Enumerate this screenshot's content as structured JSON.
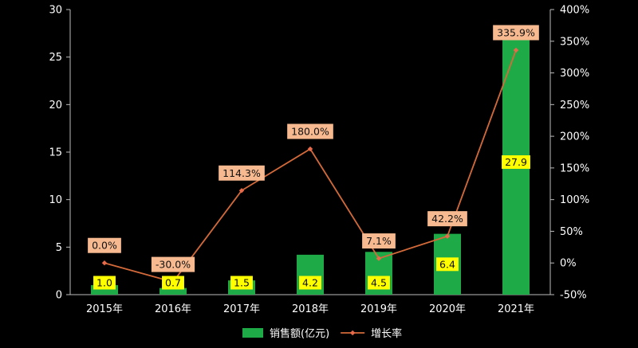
{
  "chart_data": {
    "type": "bar+line",
    "categories": [
      "2015年",
      "2016年",
      "2017年",
      "2018年",
      "2019年",
      "2020年",
      "2021年"
    ],
    "series": [
      {
        "name": "销售额(亿元)",
        "type": "bar",
        "axis": "left",
        "values": [
          1.0,
          0.7,
          1.5,
          4.2,
          4.5,
          6.4,
          27.9
        ],
        "labels": [
          "1.0",
          "0.7",
          "1.5",
          "4.2",
          "4.5",
          "6.4",
          "27.9"
        ]
      },
      {
        "name": "增长率",
        "type": "line",
        "axis": "right",
        "values": [
          0.0,
          -30.0,
          114.3,
          180.0,
          7.1,
          42.2,
          335.9
        ],
        "labels": [
          "0.0%",
          "-30.0%",
          "114.3%",
          "180.0%",
          "7.1%",
          "42.2%",
          "335.9%"
        ]
      }
    ],
    "y_left": {
      "range": [
        0,
        30
      ],
      "ticks": [
        "0",
        "5",
        "10",
        "15",
        "20",
        "25",
        "30"
      ],
      "tick_values": [
        0,
        5,
        10,
        15,
        20,
        25,
        30
      ]
    },
    "y_right": {
      "range": [
        -50,
        400
      ],
      "ticks": [
        "-50%",
        "0%",
        "50%",
        "100%",
        "150%",
        "200%",
        "250%",
        "300%",
        "350%",
        "400%"
      ],
      "tick_values": [
        -50,
        0,
        50,
        100,
        150,
        200,
        250,
        300,
        350,
        400
      ]
    },
    "grid": false,
    "legend": "bottom-center",
    "colors": {
      "bar": "#1faa48",
      "line": "#d46a3a",
      "marker": "#e86a4a",
      "bar_label_bg": "#ffff00",
      "line_label_bg": "#f7b98f",
      "background": "#000000",
      "text": "#ffffff"
    }
  }
}
